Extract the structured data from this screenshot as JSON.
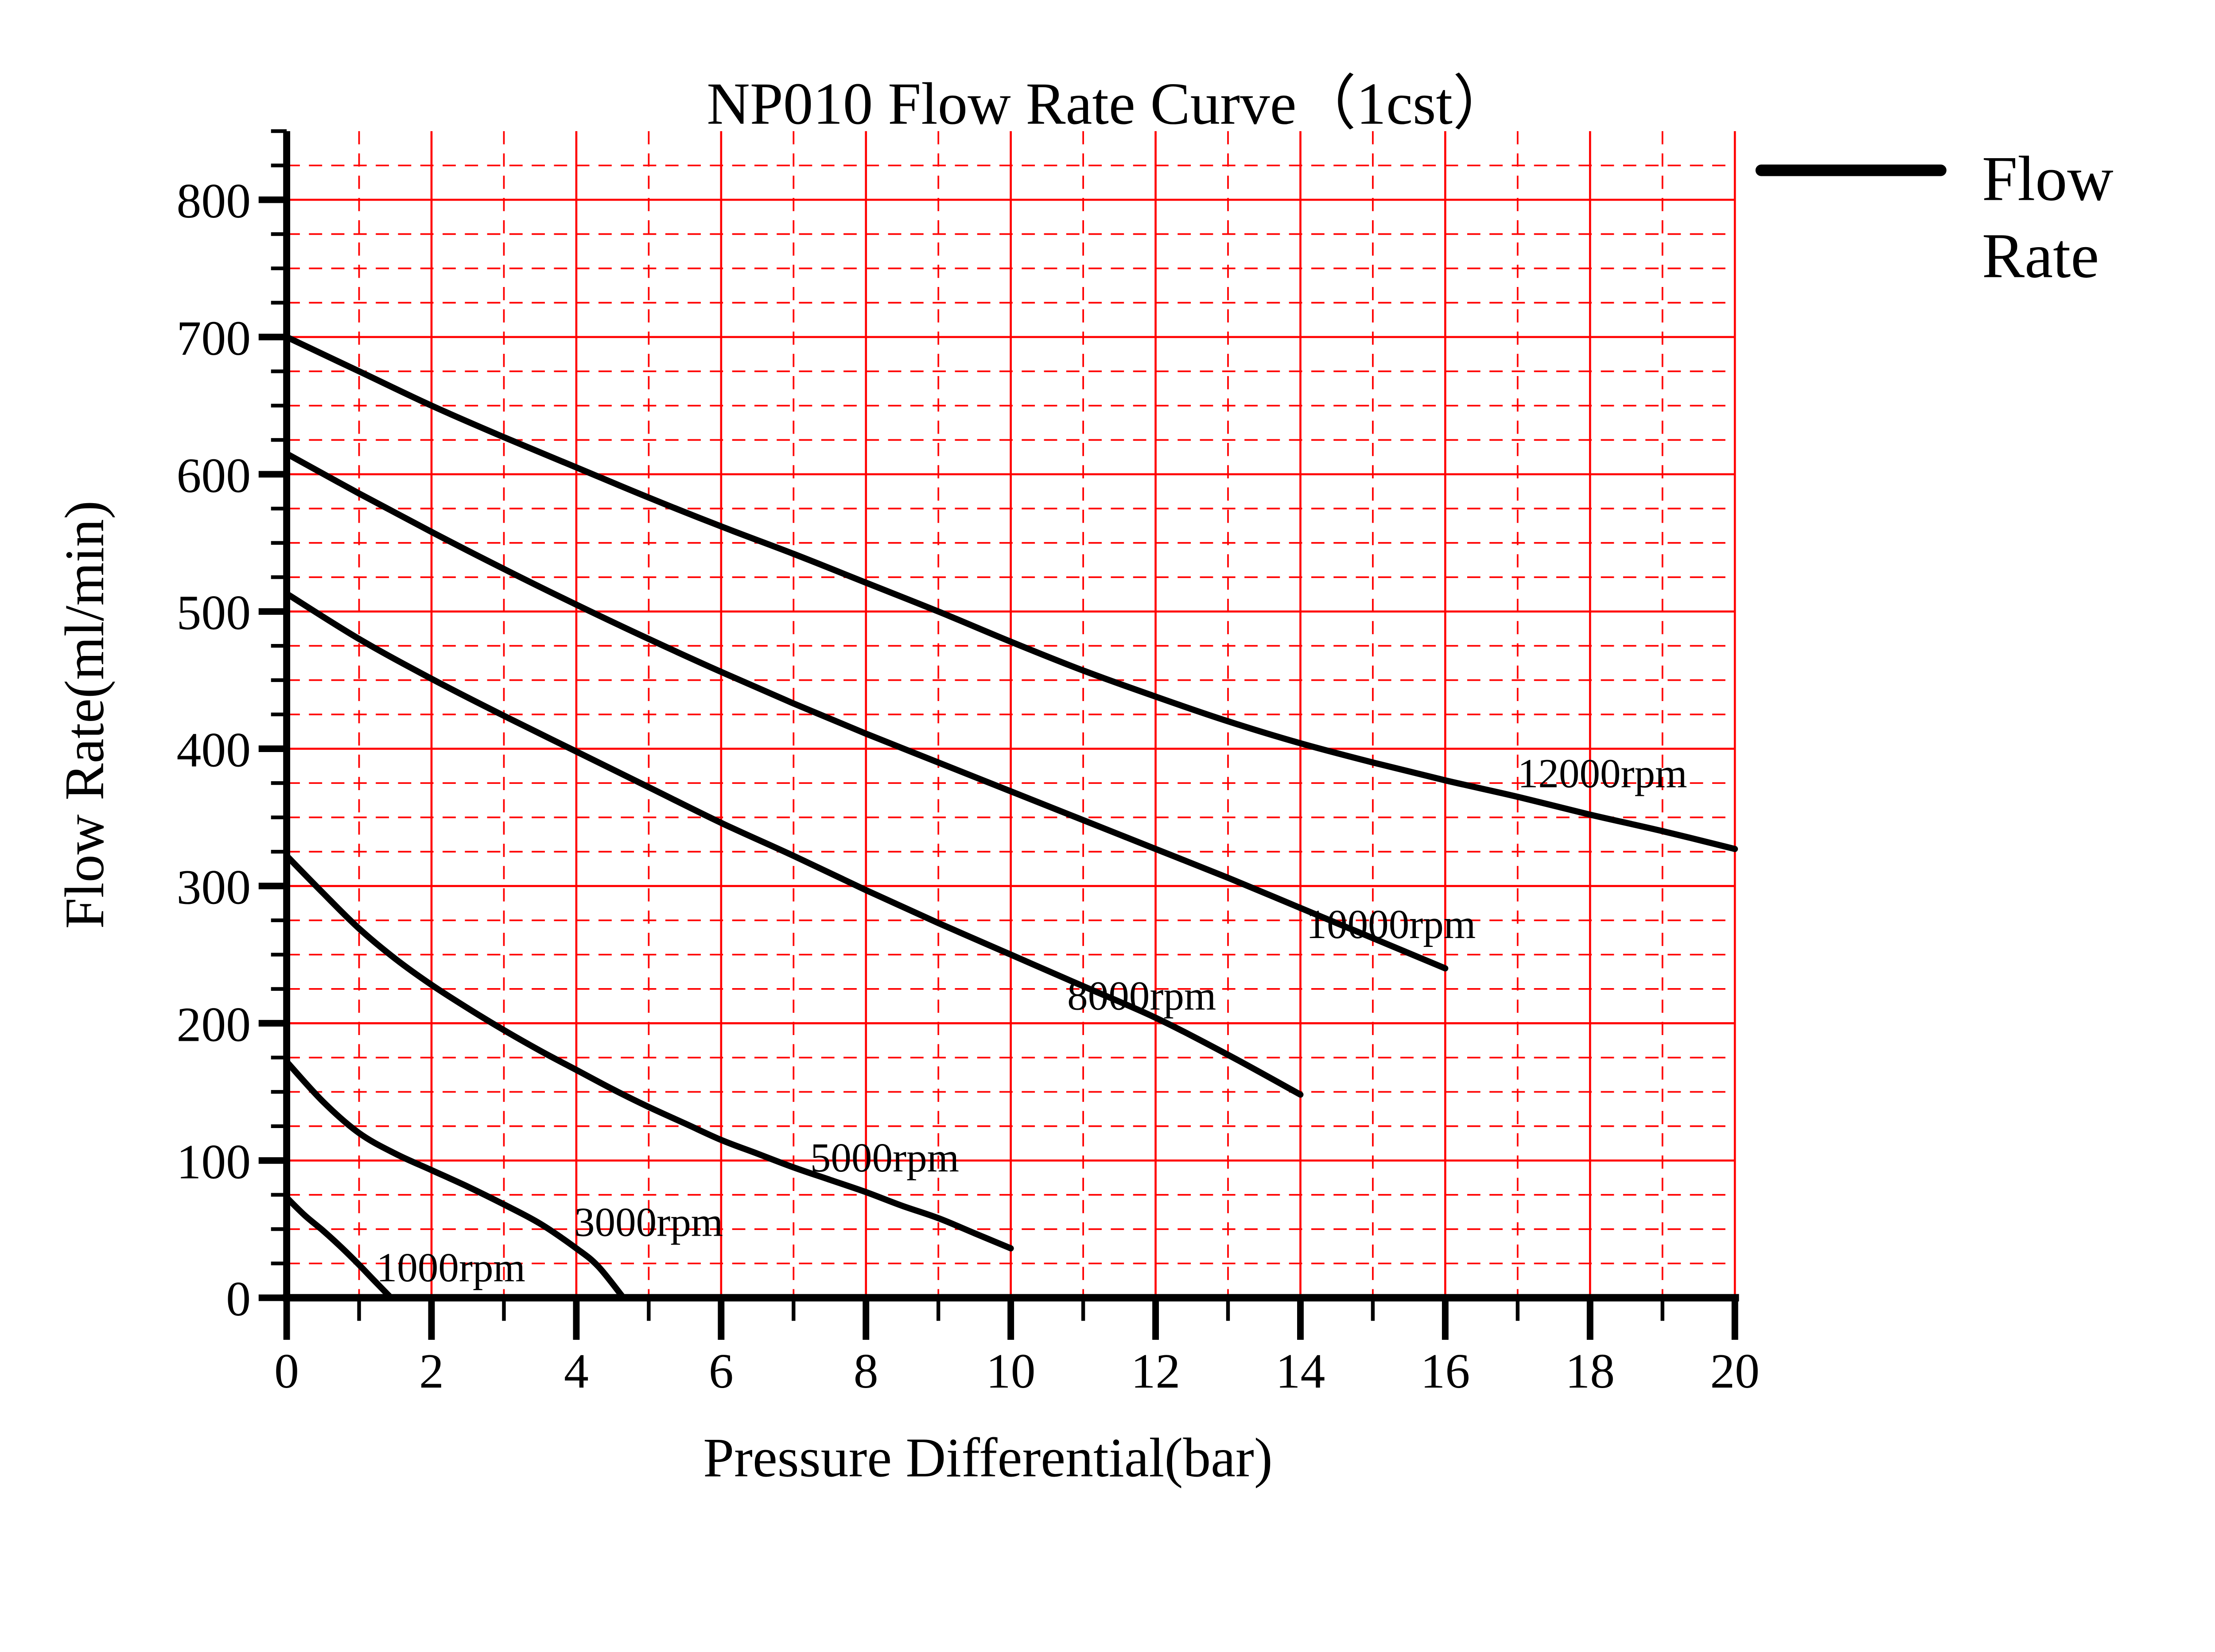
{
  "title": "NP010 Flow Rate Curve（1cst）",
  "legend": {
    "label": "Flow Rate",
    "lines": [
      "Flow",
      "Rate"
    ]
  },
  "axes": {
    "x": {
      "label": "Pressure Differential(bar)",
      "min": 0,
      "max": 20,
      "major_ticks": [
        0,
        2,
        4,
        6,
        8,
        10,
        12,
        14,
        16,
        18,
        20
      ],
      "minor_tick_step": 1
    },
    "y": {
      "label": "Flow Rate(ml/min)",
      "min": 0,
      "max": 850,
      "major_ticks": [
        0,
        100,
        200,
        300,
        400,
        500,
        600,
        700,
        800
      ],
      "minor_tick_step": 25
    }
  },
  "colors": {
    "grid": "#ff0000",
    "curve": "#000000",
    "axis": "#000000",
    "background": "#ffffff"
  },
  "chart_data": {
    "type": "line",
    "title": "NP010 Flow Rate Curve（1cst）",
    "xlabel": "Pressure Differential(bar)",
    "ylabel": "Flow Rate(ml/min)",
    "xlim": [
      0,
      20
    ],
    "ylim": [
      0,
      850
    ],
    "x_major_step": 2,
    "x_minor_step": 1,
    "y_major_step": 100,
    "y_minor_step": 25,
    "grid": {
      "major_style": "solid",
      "minor_style": "dashed",
      "color": "#ff0000"
    },
    "legend_label": "Flow Rate",
    "legend_position": "upper right, outside plot",
    "series": [
      {
        "name": "12000rpm",
        "label_anchor": {
          "x": 17.0,
          "y": 372
        },
        "points": [
          [
            0,
            700
          ],
          [
            1,
            675
          ],
          [
            2,
            650
          ],
          [
            3,
            627
          ],
          [
            4,
            605
          ],
          [
            5,
            583
          ],
          [
            6,
            562
          ],
          [
            7,
            542
          ],
          [
            8,
            521
          ],
          [
            9,
            500
          ],
          [
            10,
            478
          ],
          [
            11,
            457
          ],
          [
            12,
            438
          ],
          [
            13,
            420
          ],
          [
            14,
            404
          ],
          [
            15,
            390
          ],
          [
            16,
            377
          ],
          [
            17,
            365
          ],
          [
            18,
            352
          ],
          [
            19,
            340
          ],
          [
            20,
            327
          ]
        ]
      },
      {
        "name": "10000rpm",
        "label_anchor": {
          "x": 14.08,
          "y": 262
        },
        "points": [
          [
            0,
            615
          ],
          [
            1,
            586
          ],
          [
            2,
            558
          ],
          [
            3,
            531
          ],
          [
            4,
            505
          ],
          [
            5,
            480
          ],
          [
            6,
            456
          ],
          [
            7,
            433
          ],
          [
            8,
            411
          ],
          [
            9,
            390
          ],
          [
            10,
            369
          ],
          [
            11,
            348
          ],
          [
            12,
            327
          ],
          [
            13,
            306
          ],
          [
            14,
            284
          ],
          [
            15,
            262
          ],
          [
            16,
            240
          ]
        ]
      },
      {
        "name": "8000rpm",
        "label_anchor": {
          "x": 10.78,
          "y": 210
        },
        "points": [
          [
            0,
            513
          ],
          [
            1,
            480
          ],
          [
            2,
            451
          ],
          [
            3,
            424
          ],
          [
            4,
            398
          ],
          [
            5,
            372
          ],
          [
            6,
            346
          ],
          [
            7,
            322
          ],
          [
            8,
            297
          ],
          [
            9,
            273
          ],
          [
            10,
            250
          ],
          [
            11,
            227
          ],
          [
            12,
            204
          ],
          [
            13,
            177
          ],
          [
            14,
            148
          ]
        ]
      },
      {
        "name": "5000rpm",
        "label_anchor": {
          "x": 7.23,
          "y": 92
        },
        "points": [
          [
            0,
            322
          ],
          [
            0.5,
            295
          ],
          [
            1,
            269
          ],
          [
            1.5,
            247
          ],
          [
            2,
            228
          ],
          [
            2.5,
            211
          ],
          [
            3,
            195
          ],
          [
            3.5,
            180
          ],
          [
            4,
            166
          ],
          [
            4.5,
            152
          ],
          [
            5,
            139
          ],
          [
            5.5,
            127
          ],
          [
            6,
            115
          ],
          [
            6.5,
            105
          ],
          [
            7,
            95
          ],
          [
            7.5,
            86
          ],
          [
            8,
            77
          ],
          [
            8.5,
            67
          ],
          [
            9,
            58
          ],
          [
            9.5,
            47
          ],
          [
            10,
            36
          ]
        ]
      },
      {
        "name": "3000rpm",
        "label_anchor": {
          "x": 3.97,
          "y": 45
        },
        "points": [
          [
            0,
            172
          ],
          [
            0.5,
            143
          ],
          [
            1,
            120
          ],
          [
            1.5,
            105
          ],
          [
            2,
            93
          ],
          [
            2.5,
            81
          ],
          [
            3,
            68
          ],
          [
            3.5,
            54
          ],
          [
            4,
            36
          ],
          [
            4.3,
            23
          ],
          [
            4.65,
            0
          ]
        ]
      },
      {
        "name": "1000rpm",
        "label_anchor": {
          "x": 1.24,
          "y": 12
        },
        "points": [
          [
            0,
            73
          ],
          [
            0.25,
            60
          ],
          [
            0.5,
            49
          ],
          [
            0.75,
            37
          ],
          [
            1,
            24
          ],
          [
            1.2,
            13
          ],
          [
            1.44,
            0
          ]
        ]
      }
    ]
  }
}
